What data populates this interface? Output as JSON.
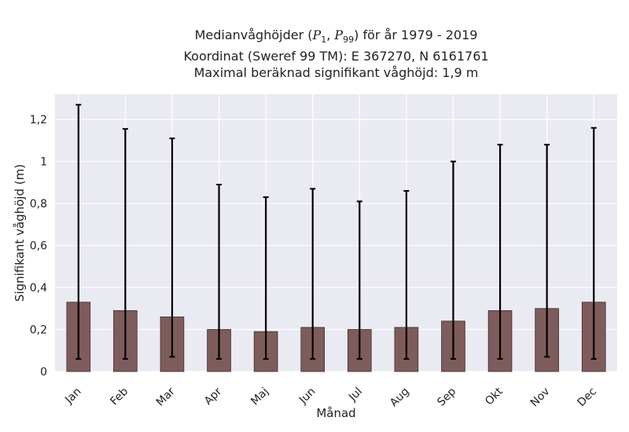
{
  "chart_data": {
    "type": "bar",
    "title_lines": [
      {
        "prefix": "Medianvåghöjder (",
        "p1": "P",
        "p1_sub": "1",
        "sep": ", ",
        "p2": "P",
        "p2_sub": "99",
        "suffix": ") för år 1979 - 2019"
      },
      {
        "text": "Koordinat (Sweref 99 TM): E 367270, N 6161761"
      },
      {
        "text": "Maximal beräknad signifikant våghöjd: 1,9 m"
      }
    ],
    "xlabel": "Månad",
    "ylabel": "Signifikant våghöjd (m)",
    "categories": [
      "Jan",
      "Feb",
      "Mar",
      "Apr",
      "Maj",
      "Jun",
      "Jul",
      "Aug",
      "Sep",
      "Okt",
      "Nov",
      "Dec"
    ],
    "values": [
      0.33,
      0.29,
      0.26,
      0.2,
      0.19,
      0.21,
      0.2,
      0.21,
      0.24,
      0.29,
      0.3,
      0.33
    ],
    "p1": [
      0.06,
      0.06,
      0.07,
      0.06,
      0.06,
      0.06,
      0.06,
      0.06,
      0.06,
      0.06,
      0.07,
      0.06
    ],
    "p99": [
      1.27,
      1.155,
      1.11,
      0.89,
      0.83,
      0.87,
      0.81,
      0.86,
      1.0,
      1.08,
      1.08,
      1.16
    ],
    "ylim": [
      0,
      1.32
    ],
    "yticks": [
      0,
      0.2,
      0.4,
      0.6,
      0.8,
      1,
      1.2
    ],
    "ytick_labels": [
      "0",
      "0,2",
      "0,4",
      "0,6",
      "0,8",
      "1",
      "1,2"
    ],
    "grid": true,
    "colors": {
      "bar": "#7f5c5c",
      "bar_edge": "#3d2b2b",
      "error": "#000000",
      "plot_bg": "#eaeaf2",
      "grid": "#ffffff"
    }
  }
}
